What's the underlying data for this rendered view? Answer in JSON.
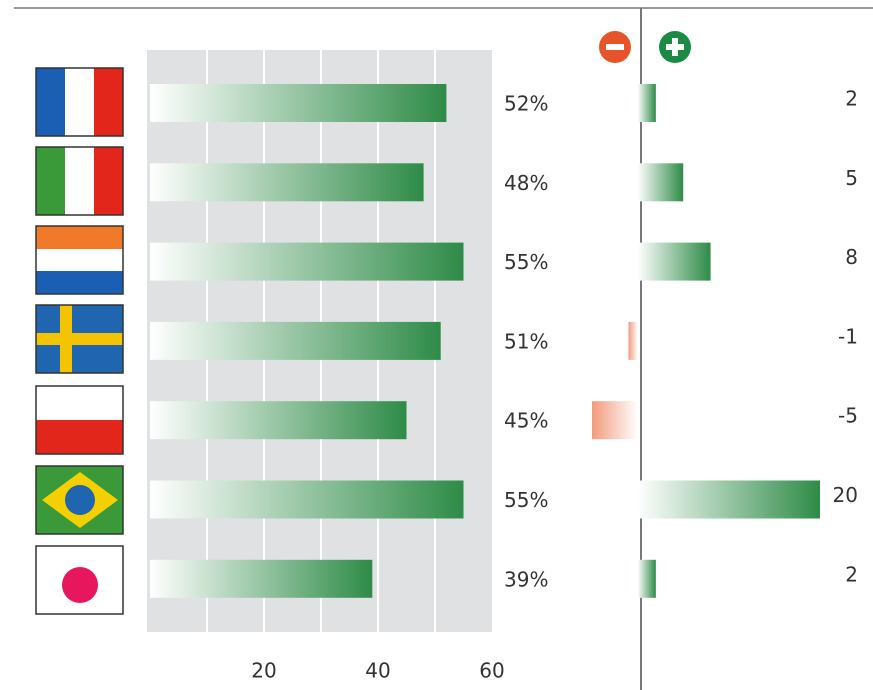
{
  "chart_data": [
    {
      "type": "bar",
      "categories": [
        null,
        null,
        null,
        null,
        null,
        null,
        null
      ],
      "values": [
        52,
        48,
        55,
        51,
        45,
        55,
        39
      ],
      "value_labels": [
        "52%",
        "48%",
        "55%",
        "51%",
        "45%",
        "55%",
        "39%"
      ],
      "color": "#2e8b47",
      "xlim": [
        0,
        60
      ],
      "xticks": [
        20,
        40,
        60
      ],
      "minor_xticks": [
        10,
        30,
        50
      ],
      "grid": true
    },
    {
      "type": "bar",
      "categories": [
        null,
        null,
        null,
        null,
        null,
        null,
        null
      ],
      "values": [
        2,
        5,
        8,
        -1,
        -5,
        20,
        2
      ],
      "color": "#2e8b47",
      "negative_color": "#f29a7c",
      "xlim": [
        -5,
        20
      ]
    }
  ]
}
